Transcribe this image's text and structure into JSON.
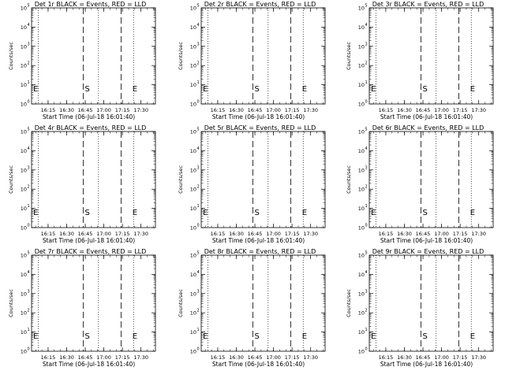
{
  "colors": {
    "background": "#ffffff",
    "foreground": "#000000"
  },
  "chart_data": [
    {
      "type": "line",
      "title": "Det 1r BLACK = Events, RED = LLD",
      "xlabel": "Start Time (06-Jul-18 16:01:40)",
      "ylabel": "Counts/sec",
      "x_ticks": [
        "16:15",
        "16:30",
        "16:45",
        "17:00",
        "17:15",
        "17:30"
      ],
      "y_ticks": [
        "10",
        "10",
        "10",
        "10",
        "10",
        "10"
      ],
      "y_exponents": [
        "0",
        "1",
        "2",
        "3",
        "4",
        "5"
      ],
      "xlim": [
        "16:01:40",
        "17:41:40"
      ],
      "ylim": [
        1,
        100000
      ],
      "y_scale": "log",
      "markers": [
        "E",
        "S",
        "E"
      ],
      "series": []
    },
    {
      "type": "line",
      "title": "Det 2r BLACK = Events, RED = LLD",
      "xlabel": "Start Time (06-Jul-18 16:01:40)",
      "ylabel": "Counts/sec",
      "x_ticks": [
        "16:15",
        "16:30",
        "16:45",
        "17:00",
        "17:15",
        "17:30"
      ],
      "y_ticks": [
        "10",
        "10",
        "10",
        "10",
        "10",
        "10"
      ],
      "y_exponents": [
        "0",
        "1",
        "2",
        "3",
        "4",
        "5"
      ],
      "xlim": [
        "16:01:40",
        "17:41:40"
      ],
      "ylim": [
        1,
        100000
      ],
      "y_scale": "log",
      "markers": [
        "E",
        "S",
        "E"
      ],
      "series": []
    },
    {
      "type": "line",
      "title": "Det 3r BLACK = Events, RED = LLD",
      "xlabel": "Start Time (06-Jul-18 16:01:40)",
      "ylabel": "Counts/sec",
      "x_ticks": [
        "16:15",
        "16:30",
        "16:45",
        "17:00",
        "17:15",
        "17:30"
      ],
      "y_ticks": [
        "10",
        "10",
        "10",
        "10",
        "10",
        "10"
      ],
      "y_exponents": [
        "0",
        "1",
        "2",
        "3",
        "4",
        "5"
      ],
      "xlim": [
        "16:01:40",
        "17:41:40"
      ],
      "ylim": [
        1,
        100000
      ],
      "y_scale": "log",
      "markers": [
        "E",
        "S",
        "E"
      ],
      "series": []
    },
    {
      "type": "line",
      "title": "Det 4r BLACK = Events, RED = LLD",
      "xlabel": "Start Time (06-Jul-18 16:01:40)",
      "ylabel": "Counts/sec",
      "x_ticks": [
        "16:15",
        "16:30",
        "16:45",
        "17:00",
        "17:15",
        "17:30"
      ],
      "y_ticks": [
        "10",
        "10",
        "10",
        "10",
        "10",
        "10"
      ],
      "y_exponents": [
        "0",
        "1",
        "2",
        "3",
        "4",
        "5"
      ],
      "xlim": [
        "16:01:40",
        "17:41:40"
      ],
      "ylim": [
        1,
        100000
      ],
      "y_scale": "log",
      "markers": [
        "E",
        "S",
        "E"
      ],
      "series": []
    },
    {
      "type": "line",
      "title": "Det 5r BLACK = Events, RED = LLD",
      "xlabel": "Start Time (06-Jul-18 16:01:40)",
      "ylabel": "Counts/sec",
      "x_ticks": [
        "16:15",
        "16:30",
        "16:45",
        "17:00",
        "17:15",
        "17:30"
      ],
      "y_ticks": [
        "10",
        "10",
        "10",
        "10",
        "10",
        "10"
      ],
      "y_exponents": [
        "0",
        "1",
        "2",
        "3",
        "4",
        "5"
      ],
      "xlim": [
        "16:01:40",
        "17:41:40"
      ],
      "ylim": [
        1,
        100000
      ],
      "y_scale": "log",
      "markers": [
        "E",
        "S",
        "E"
      ],
      "series": []
    },
    {
      "type": "line",
      "title": "Det 6r BLACK = Events, RED = LLD",
      "xlabel": "Start Time (06-Jul-18 16:01:40)",
      "ylabel": "Counts/sec",
      "x_ticks": [
        "16:15",
        "16:30",
        "16:45",
        "17:00",
        "17:15",
        "17:30"
      ],
      "y_ticks": [
        "10",
        "10",
        "10",
        "10",
        "10",
        "10"
      ],
      "y_exponents": [
        "0",
        "1",
        "2",
        "3",
        "4",
        "5"
      ],
      "xlim": [
        "16:01:40",
        "17:41:40"
      ],
      "ylim": [
        1,
        100000
      ],
      "y_scale": "log",
      "markers": [
        "E",
        "S",
        "E"
      ],
      "series": []
    },
    {
      "type": "line",
      "title": "Det 7r BLACK = Events, RED = LLD",
      "xlabel": "Start Time (06-Jul-18 16:01:40)",
      "ylabel": "Counts/sec",
      "x_ticks": [
        "16:15",
        "16:30",
        "16:45",
        "17:00",
        "17:15",
        "17:30"
      ],
      "y_ticks": [
        "10",
        "10",
        "10",
        "10",
        "10",
        "10"
      ],
      "y_exponents": [
        "0",
        "1",
        "2",
        "3",
        "4",
        "5"
      ],
      "xlim": [
        "16:01:40",
        "17:41:40"
      ],
      "ylim": [
        1,
        100000
      ],
      "y_scale": "log",
      "markers": [
        "E",
        "S",
        "E"
      ],
      "series": []
    },
    {
      "type": "line",
      "title": "Det 8r BLACK = Events, RED = LLD",
      "xlabel": "Start Time (06-Jul-18 16:01:40)",
      "ylabel": "Counts/sec",
      "x_ticks": [
        "16:15",
        "16:30",
        "16:45",
        "17:00",
        "17:15",
        "17:30"
      ],
      "y_ticks": [
        "10",
        "10",
        "10",
        "10",
        "10",
        "10"
      ],
      "y_exponents": [
        "0",
        "1",
        "2",
        "3",
        "4",
        "5"
      ],
      "xlim": [
        "16:01:40",
        "17:41:40"
      ],
      "ylim": [
        1,
        100000
      ],
      "y_scale": "log",
      "markers": [
        "E",
        "S",
        "E"
      ],
      "series": []
    },
    {
      "type": "line",
      "title": "Det 9r BLACK = Events, RED = LLD",
      "xlabel": "Start Time (06-Jul-18 16:01:40)",
      "ylabel": "Counts/sec",
      "x_ticks": [
        "16:15",
        "16:30",
        "16:45",
        "17:00",
        "17:15",
        "17:30"
      ],
      "y_ticks": [
        "10",
        "10",
        "10",
        "10",
        "10",
        "10"
      ],
      "y_exponents": [
        "0",
        "1",
        "2",
        "3",
        "4",
        "5"
      ],
      "xlim": [
        "16:01:40",
        "17:41:40"
      ],
      "ylim": [
        1,
        100000
      ],
      "y_scale": "log",
      "markers": [
        "E",
        "S",
        "E"
      ],
      "series": []
    }
  ]
}
